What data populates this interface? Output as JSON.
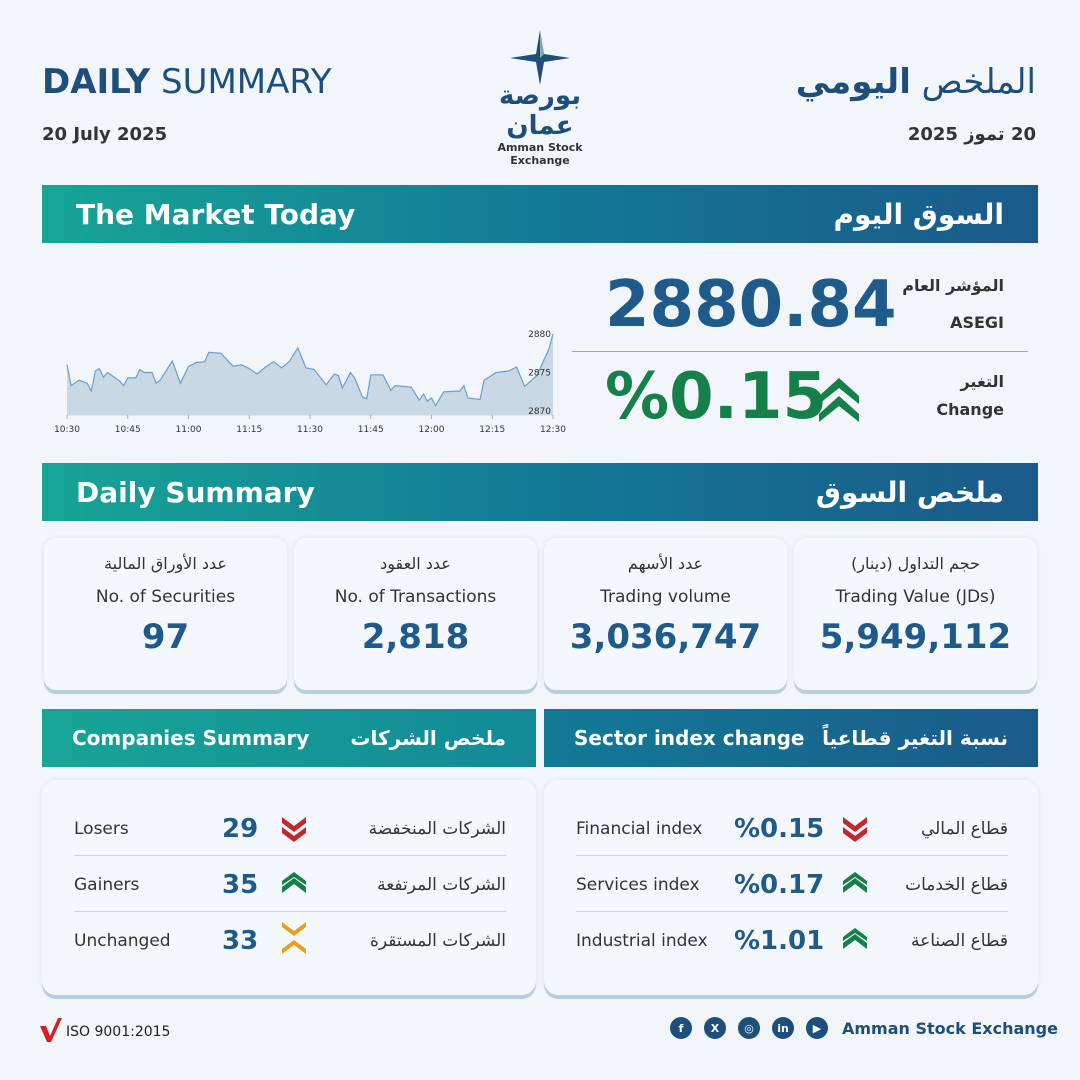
{
  "header": {
    "title_bold": "DAILY",
    "title_rest": " SUMMARY",
    "date": "20 July 2025",
    "title_ar_1": "الملخص ",
    "title_ar_2": "اليومي",
    "date_ar": "20 تموز 2025",
    "logo_ar": "بورصة عمان",
    "logo_en": "Amman Stock Exchange"
  },
  "market_today": {
    "title": "The Market Today",
    "title_ar": "السوق اليوم",
    "index_label_ar": "المؤشر العام",
    "index_label": "ASEGI",
    "index_value": "2880.84",
    "change_label_ar": "التغير",
    "change_label": "Change",
    "change_value": "%0.15",
    "change_direction": "up"
  },
  "chart_data": {
    "type": "area",
    "xlabel": "",
    "ylabel": "",
    "ylim": [
      2869.5,
      2880.5
    ],
    "yticks": [
      "2880",
      "2875",
      "2870"
    ],
    "xticks": [
      "10:30",
      "10:45",
      "11:00",
      "11:15",
      "11:30",
      "11:45",
      "12:00",
      "12:15",
      "12:30"
    ],
    "grid": false,
    "x": [
      "10:30",
      "10:31",
      "10:33",
      "10:35",
      "10:36",
      "10:37",
      "10:38",
      "10:39",
      "10:40",
      "10:43",
      "10:44",
      "10:45",
      "10:47",
      "10:48",
      "10:49",
      "10:51",
      "10:52",
      "10:53",
      "10:56",
      "10:58",
      "11:00",
      "11:02",
      "11:04",
      "11:05",
      "11:08",
      "11:11",
      "11:13",
      "11:15",
      "11:17",
      "11:19",
      "11:21",
      "11:23",
      "11:25",
      "11:27",
      "11:29",
      "11:31",
      "11:34",
      "11:36",
      "11:37",
      "11:38",
      "11:40",
      "11:41",
      "11:43",
      "11:44",
      "11:45",
      "11:48",
      "11:50",
      "11:51",
      "11:55",
      "11:57",
      "11:58",
      "11:59",
      "12:00",
      "12:01",
      "12:03",
      "12:07",
      "12:08",
      "12:09",
      "12:12",
      "12:13",
      "12:16",
      "12:19",
      "12:21",
      "12:23",
      "12:26",
      "12:27",
      "12:28",
      "12:29",
      "12:30"
    ],
    "values": [
      2876.0,
      2873.3,
      2874.0,
      2873.6,
      2872.6,
      2875.2,
      2875.5,
      2874.4,
      2875.0,
      2873.9,
      2873.3,
      2874.3,
      2874.3,
      2875.4,
      2875.0,
      2875.0,
      2873.6,
      2874.0,
      2876.5,
      2873.6,
      2875.8,
      2876.3,
      2876.4,
      2877.6,
      2877.5,
      2875.8,
      2876.0,
      2875.5,
      2874.8,
      2875.7,
      2876.4,
      2875.6,
      2876.5,
      2878.2,
      2875.6,
      2875.4,
      2873.4,
      2874.8,
      2874.6,
      2873.0,
      2875.0,
      2874.3,
      2871.8,
      2871.6,
      2874.7,
      2874.7,
      2872.7,
      2873.3,
      2873.1,
      2871.4,
      2872.2,
      2871.3,
      2871.7,
      2870.7,
      2872.5,
      2872.6,
      2873.3,
      2871.7,
      2871.5,
      2874.0,
      2875.0,
      2875.2,
      2875.7,
      2873.2,
      2874.6,
      2875.7,
      2876.9,
      2878.0,
      2880.0
    ]
  },
  "daily_summary": {
    "title": "Daily Summary",
    "title_ar": "ملخص السوق",
    "cards": [
      {
        "label_ar": "عدد الأوراق المالية",
        "label": "No. of Securities",
        "value": "97"
      },
      {
        "label_ar": "عدد العقود",
        "label": "No. of Transactions",
        "value": "2,818"
      },
      {
        "label_ar": "عدد الأسهم",
        "label": "Trading volume",
        "value": "3,036,747"
      },
      {
        "label_ar": "حجم التداول (دينار)",
        "label": "Trading Value (JDs)",
        "value": "5,949,112"
      }
    ]
  },
  "companies": {
    "title": "Companies Summary",
    "title_ar": "ملخص الشركات",
    "rows": [
      {
        "label": "Losers",
        "value": "29",
        "label_ar": "الشركات المنخفضة",
        "direction": "down"
      },
      {
        "label": "Gainers",
        "value": "35",
        "label_ar": "الشركات المرتفعة",
        "direction": "up"
      },
      {
        "label": "Unchanged",
        "value": "33",
        "label_ar": "الشركات المستقرة",
        "direction": "unchanged"
      }
    ]
  },
  "sectors": {
    "title": "Sector index change",
    "title_ar": "نسبة التغير قطاعياً",
    "rows": [
      {
        "label": "Financial index",
        "value": "%0.15",
        "label_ar": "قطاع المالي",
        "direction": "down"
      },
      {
        "label": "Services index",
        "value": "%0.17",
        "label_ar": "قطاع الخدمات",
        "direction": "up"
      },
      {
        "label": "Industrial index",
        "value": "%1.01",
        "label_ar": "قطاع الصناعة",
        "direction": "up"
      }
    ]
  },
  "footer": {
    "iso": "ISO 9001:2015",
    "brand": "Amman Stock Exchange",
    "social": [
      "facebook-icon",
      "x-icon",
      "instagram-icon",
      "linkedin-icon",
      "youtube-icon"
    ],
    "social_glyphs": [
      "f",
      "X",
      "◎",
      "in",
      "▶"
    ]
  },
  "colors": {
    "primary": "#1d4f7a",
    "value": "#1f5b8a",
    "up": "#15804a",
    "down": "#c0282d",
    "unchanged": "#e5a11c",
    "banner_start": "#17a596",
    "banner_end": "#1a5a8a"
  }
}
